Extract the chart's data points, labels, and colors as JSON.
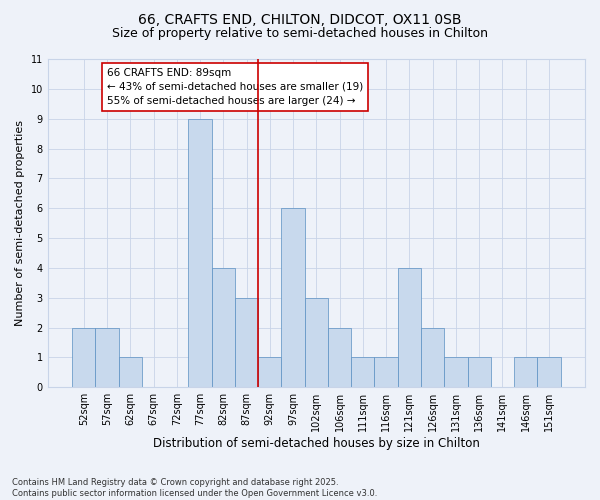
{
  "title1": "66, CRAFTS END, CHILTON, DIDCOT, OX11 0SB",
  "title2": "Size of property relative to semi-detached houses in Chilton",
  "xlabel": "Distribution of semi-detached houses by size in Chilton",
  "ylabel": "Number of semi-detached properties",
  "bins": [
    "52sqm",
    "57sqm",
    "62sqm",
    "67sqm",
    "72sqm",
    "77sqm",
    "82sqm",
    "87sqm",
    "92sqm",
    "97sqm",
    "102sqm",
    "106sqm",
    "111sqm",
    "116sqm",
    "121sqm",
    "126sqm",
    "131sqm",
    "136sqm",
    "141sqm",
    "146sqm",
    "151sqm"
  ],
  "values": [
    2,
    2,
    1,
    0,
    0,
    9,
    4,
    3,
    1,
    6,
    3,
    2,
    1,
    1,
    4,
    2,
    1,
    1,
    0,
    1,
    1
  ],
  "bar_color": "#c8d9ed",
  "bar_edge_color": "#5a8fc2",
  "bar_edge_width": 0.5,
  "grid_color": "#c8d4e8",
  "background_color": "#eef2f9",
  "vline_x": 7.5,
  "vline_color": "#cc0000",
  "annotation_text": "66 CRAFTS END: 89sqm\n← 43% of semi-detached houses are smaller (19)\n55% of semi-detached houses are larger (24) →",
  "annotation_box_color": "white",
  "annotation_box_edge": "#cc0000",
  "ylim": [
    0,
    11
  ],
  "yticks": [
    0,
    1,
    2,
    3,
    4,
    5,
    6,
    7,
    8,
    9,
    10,
    11
  ],
  "footer": "Contains HM Land Registry data © Crown copyright and database right 2025.\nContains public sector information licensed under the Open Government Licence v3.0.",
  "title1_fontsize": 10,
  "title2_fontsize": 9,
  "xlabel_fontsize": 8.5,
  "ylabel_fontsize": 8,
  "tick_fontsize": 7,
  "annotation_fontsize": 7.5,
  "footer_fontsize": 6
}
